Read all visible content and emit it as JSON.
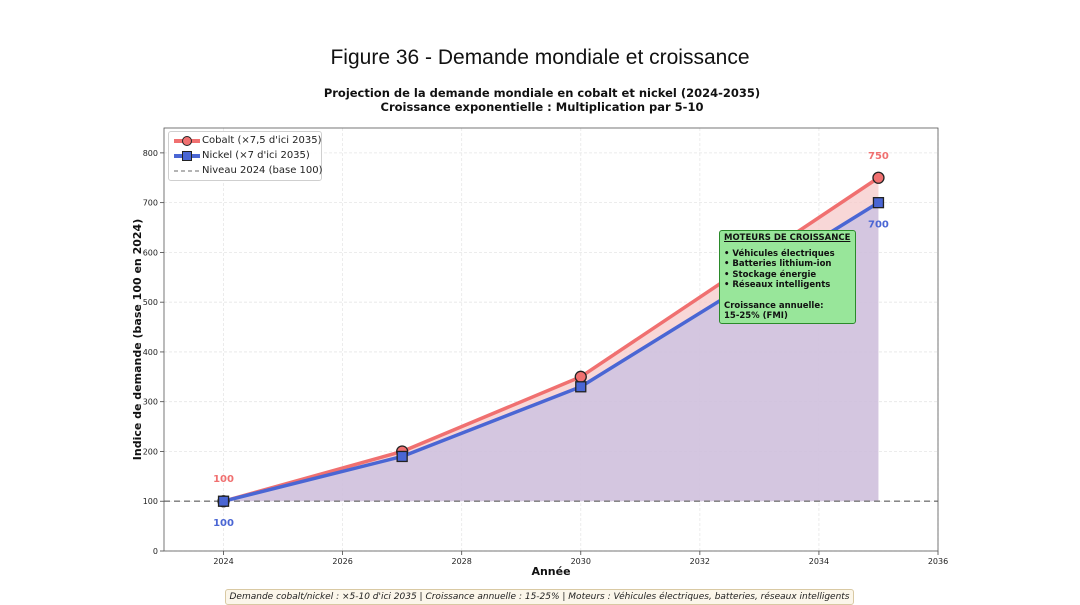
{
  "figure_title": "Figure 36 - Demande mondiale et croissance",
  "footer_note": "Demande cobalt/nickel : ×5-10 d'ici 2035 | Croissance annuelle : 15-25% | Moteurs : Véhicules électriques, batteries, réseaux intelligents",
  "colors": {
    "cobalt": "#f07070",
    "nickel": "#4a66d4",
    "fill_cobalt": "#f5c9c9",
    "fill_nickel": "#cfc0dd",
    "box_bg": "#98e69a",
    "box_border": "#2a8a2a"
  },
  "chart_data": {
    "type": "line",
    "title": "Projection de la demande mondiale en cobalt et nickel (2024-2035)",
    "subtitle": "Croissance exponentielle : Multiplication par 5-10",
    "xlabel": "Année",
    "ylabel": "Indice de demande (base 100 en 2024)",
    "xlim": [
      2023,
      2036
    ],
    "ylim": [
      0,
      850
    ],
    "x_ticks": [
      2024,
      2026,
      2028,
      2030,
      2032,
      2034,
      2036
    ],
    "y_ticks": [
      0,
      100,
      200,
      300,
      400,
      500,
      600,
      700,
      800
    ],
    "grid": true,
    "legend_position": "top-left",
    "x": [
      2024,
      2027,
      2030,
      2035
    ],
    "series": [
      {
        "name": "Cobalt (×7,5 d'ici 2035)",
        "values": [
          100,
          200,
          350,
          750
        ],
        "marker": "circle"
      },
      {
        "name": "Nickel (×7 d'ici 2035)",
        "values": [
          100,
          190,
          330,
          700
        ],
        "marker": "square"
      }
    ],
    "reference_line": {
      "name": "Niveau 2024 (base 100)",
      "y": 100
    },
    "annotations": [
      {
        "series": "Cobalt",
        "x": 2024,
        "text": "100"
      },
      {
        "series": "Cobalt",
        "x": 2035,
        "text": "750"
      },
      {
        "series": "Nickel",
        "x": 2024,
        "text": "100"
      },
      {
        "series": "Nickel",
        "x": 2035,
        "text": "700"
      }
    ],
    "drivers_box": {
      "title": "MOTEURS DE CROISSANCE",
      "items": [
        "• Véhicules électriques",
        "• Batteries lithium-ion",
        "• Stockage énergie",
        "• Réseaux intelligents"
      ],
      "growth_label": "Croissance annuelle:",
      "growth_value": "15-25% (FMI)"
    }
  }
}
